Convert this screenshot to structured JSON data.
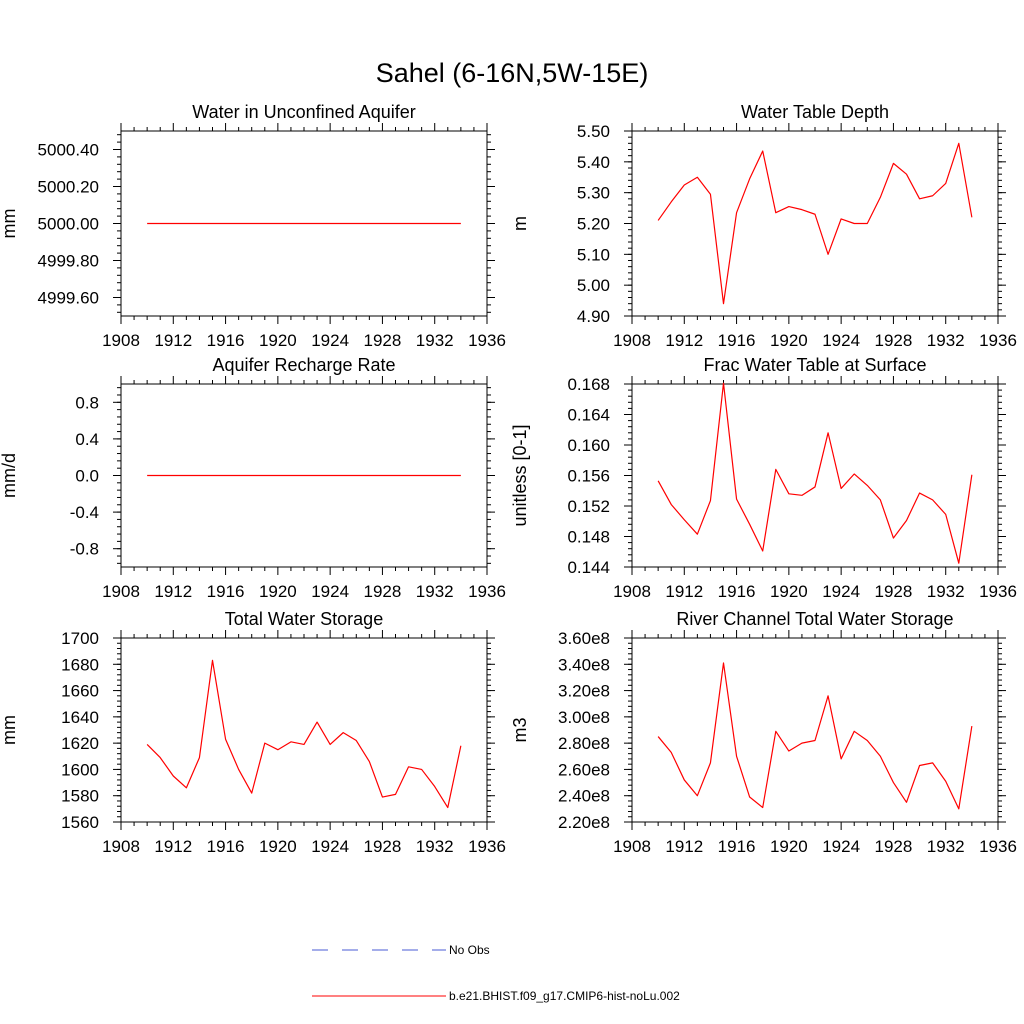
{
  "figure": {
    "title": "Sahel (6-16N,5W-15E)"
  },
  "legend": [
    {
      "label": "No Obs",
      "color": "#4a5bd4",
      "style": "dashed"
    },
    {
      "label": "b.e21.BHIST.f09_g17.CMIP6-hist-noLu.002",
      "color": "#ff0000",
      "style": "solid"
    }
  ],
  "chart_data": [
    {
      "type": "line",
      "title": "Water in Unconfined Aquifer",
      "ylabel": "mm",
      "xlim": [
        1908,
        1936
      ],
      "xticks": [
        1908,
        1912,
        1916,
        1920,
        1924,
        1928,
        1932,
        1936
      ],
      "xtick_labels": [
        "1908",
        "1912",
        "1916",
        "1920",
        "1924",
        "1928",
        "1932",
        "1936"
      ],
      "ylim": [
        4999.5,
        5000.5
      ],
      "yticks": [
        4999.6,
        4999.8,
        5000.0,
        5000.2,
        5000.4
      ],
      "ytick_labels": [
        "4999.60",
        "4999.80",
        "5000.00",
        "5000.20",
        "5000.40"
      ],
      "x": [
        1910,
        1911,
        1912,
        1913,
        1914,
        1915,
        1916,
        1917,
        1918,
        1919,
        1920,
        1921,
        1922,
        1923,
        1924,
        1925,
        1926,
        1927,
        1928,
        1929,
        1930,
        1931,
        1932,
        1933,
        1934
      ],
      "series": [
        {
          "color": "#ff0000",
          "values": [
            5000,
            5000,
            5000,
            5000,
            5000,
            5000,
            5000,
            5000,
            5000,
            5000,
            5000,
            5000,
            5000,
            5000,
            5000,
            5000,
            5000,
            5000,
            5000,
            5000,
            5000,
            5000,
            5000,
            5000,
            5000
          ]
        }
      ]
    },
    {
      "type": "line",
      "title": "Water Table Depth",
      "ylabel": "m",
      "xlim": [
        1908,
        1936
      ],
      "xticks": [
        1908,
        1912,
        1916,
        1920,
        1924,
        1928,
        1932,
        1936
      ],
      "xtick_labels": [
        "1908",
        "1912",
        "1916",
        "1920",
        "1924",
        "1928",
        "1932",
        "1936"
      ],
      "ylim": [
        4.9,
        5.5
      ],
      "yticks": [
        4.9,
        5.0,
        5.1,
        5.2,
        5.3,
        5.4,
        5.5
      ],
      "ytick_labels": [
        "4.90",
        "5.00",
        "5.10",
        "5.20",
        "5.30",
        "5.40",
        "5.50"
      ],
      "x": [
        1910,
        1911,
        1912,
        1913,
        1914,
        1915,
        1916,
        1917,
        1918,
        1919,
        1920,
        1921,
        1922,
        1923,
        1924,
        1925,
        1926,
        1927,
        1928,
        1929,
        1930,
        1931,
        1932,
        1933,
        1934
      ],
      "series": [
        {
          "color": "#ff0000",
          "values": [
            5.21,
            5.27,
            5.325,
            5.35,
            5.295,
            4.94,
            5.235,
            5.345,
            5.435,
            5.235,
            5.255,
            5.245,
            5.23,
            5.1,
            5.215,
            5.2,
            5.2,
            5.285,
            5.395,
            5.36,
            5.28,
            5.29,
            5.33,
            5.46,
            5.22
          ]
        }
      ]
    },
    {
      "type": "line",
      "title": "Aquifer Recharge Rate",
      "ylabel": "mm/d",
      "xlim": [
        1908,
        1936
      ],
      "xticks": [
        1908,
        1912,
        1916,
        1920,
        1924,
        1928,
        1932,
        1936
      ],
      "xtick_labels": [
        "1908",
        "1912",
        "1916",
        "1920",
        "1924",
        "1928",
        "1932",
        "1936"
      ],
      "ylim": [
        -1.0,
        1.0
      ],
      "yticks": [
        -0.8,
        -0.4,
        0.0,
        0.4,
        0.8
      ],
      "ytick_labels": [
        "-0.8",
        "-0.4",
        "0.0",
        "0.4",
        "0.8"
      ],
      "x": [
        1910,
        1911,
        1912,
        1913,
        1914,
        1915,
        1916,
        1917,
        1918,
        1919,
        1920,
        1921,
        1922,
        1923,
        1924,
        1925,
        1926,
        1927,
        1928,
        1929,
        1930,
        1931,
        1932,
        1933,
        1934
      ],
      "series": [
        {
          "color": "#ff0000",
          "values": [
            0,
            0,
            0,
            0,
            0,
            0,
            0,
            0,
            0,
            0,
            0,
            0,
            0,
            0,
            0,
            0,
            0,
            0,
            0,
            0,
            0,
            0,
            0,
            0,
            0
          ]
        }
      ]
    },
    {
      "type": "line",
      "title": "Frac Water Table at Surface",
      "ylabel": "unitless [0-1]",
      "xlim": [
        1908,
        1936
      ],
      "xticks": [
        1908,
        1912,
        1916,
        1920,
        1924,
        1928,
        1932,
        1936
      ],
      "xtick_labels": [
        "1908",
        "1912",
        "1916",
        "1920",
        "1924",
        "1928",
        "1932",
        "1936"
      ],
      "ylim": [
        0.144,
        0.168
      ],
      "yticks": [
        0.144,
        0.148,
        0.152,
        0.156,
        0.16,
        0.164,
        0.168
      ],
      "ytick_labels": [
        "0.144",
        "0.148",
        "0.152",
        "0.156",
        "0.160",
        "0.164",
        "0.168"
      ],
      "x": [
        1910,
        1911,
        1912,
        1913,
        1914,
        1915,
        1916,
        1917,
        1918,
        1919,
        1920,
        1921,
        1922,
        1923,
        1924,
        1925,
        1926,
        1927,
        1928,
        1929,
        1930,
        1931,
        1932,
        1933,
        1934
      ],
      "series": [
        {
          "color": "#ff0000",
          "values": [
            0.1553,
            0.1522,
            0.1502,
            0.1483,
            0.1527,
            0.1681,
            0.1529,
            0.1496,
            0.1461,
            0.1568,
            0.1536,
            0.1534,
            0.1545,
            0.1616,
            0.1543,
            0.1562,
            0.1547,
            0.1528,
            0.1478,
            0.1501,
            0.1537,
            0.1528,
            0.1509,
            0.1445,
            0.1561
          ]
        }
      ]
    },
    {
      "type": "line",
      "title": "Total Water Storage",
      "ylabel": "mm",
      "xlim": [
        1908,
        1936
      ],
      "xticks": [
        1908,
        1912,
        1916,
        1920,
        1924,
        1928,
        1932,
        1936
      ],
      "xtick_labels": [
        "1908",
        "1912",
        "1916",
        "1920",
        "1924",
        "1928",
        "1932",
        "1936"
      ],
      "ylim": [
        1560,
        1700
      ],
      "yticks": [
        1560,
        1580,
        1600,
        1620,
        1640,
        1660,
        1680,
        1700
      ],
      "ytick_labels": [
        "1560",
        "1580",
        "1600",
        "1620",
        "1640",
        "1660",
        "1680",
        "1700"
      ],
      "x": [
        1910,
        1911,
        1912,
        1913,
        1914,
        1915,
        1916,
        1917,
        1918,
        1919,
        1920,
        1921,
        1922,
        1923,
        1924,
        1925,
        1926,
        1927,
        1928,
        1929,
        1930,
        1931,
        1932,
        1933,
        1934
      ],
      "series": [
        {
          "color": "#ff0000",
          "values": [
            1619,
            1609,
            1595,
            1586,
            1609,
            1683,
            1623,
            1600,
            1582,
            1620,
            1615,
            1621,
            1619,
            1636,
            1619,
            1628,
            1622,
            1606,
            1579,
            1581,
            1602,
            1600,
            1587,
            1571,
            1618
          ]
        }
      ]
    },
    {
      "type": "line",
      "title": "River Channel Total Water Storage",
      "ylabel": "m3",
      "xlim": [
        1908,
        1936
      ],
      "xticks": [
        1908,
        1912,
        1916,
        1920,
        1924,
        1928,
        1932,
        1936
      ],
      "xtick_labels": [
        "1908",
        "1912",
        "1916",
        "1920",
        "1924",
        "1928",
        "1932",
        "1936"
      ],
      "ylim": [
        220000000.0,
        360000000.0
      ],
      "yticks": [
        220000000.0,
        240000000.0,
        260000000.0,
        280000000.0,
        300000000.0,
        320000000.0,
        340000000.0,
        360000000.0
      ],
      "ytick_labels": [
        "2.20e8",
        "2.40e8",
        "2.60e8",
        "2.80e8",
        "3.00e8",
        "3.20e8",
        "3.40e8",
        "3.60e8"
      ],
      "x": [
        1910,
        1911,
        1912,
        1913,
        1914,
        1915,
        1916,
        1917,
        1918,
        1919,
        1920,
        1921,
        1922,
        1923,
        1924,
        1925,
        1926,
        1927,
        1928,
        1929,
        1930,
        1931,
        1932,
        1933,
        1934
      ],
      "series": [
        {
          "color": "#ff0000",
          "values": [
            285000000.0,
            273000000.0,
            252000000.0,
            240000000.0,
            265000000.0,
            341000000.0,
            270000000.0,
            239000000.0,
            231000000.0,
            289000000.0,
            274000000.0,
            280000000.0,
            282000000.0,
            316000000.0,
            268000000.0,
            289000000.0,
            282000000.0,
            270000000.0,
            250000000.0,
            235000000.0,
            263000000.0,
            265000000.0,
            251000000.0,
            230000000.0,
            293000000.0
          ]
        }
      ]
    }
  ]
}
